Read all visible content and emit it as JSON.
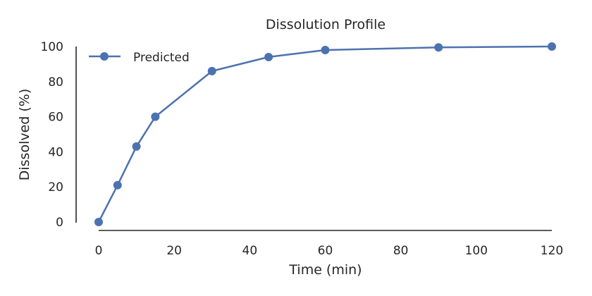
{
  "chart_data": {
    "type": "line",
    "title": "Dissolution Profile",
    "xlabel": "Time (min)",
    "ylabel": "Dissolved (%)",
    "xlim": [
      -6,
      122
    ],
    "ylim": [
      0,
      100
    ],
    "xticks": [
      0,
      20,
      40,
      60,
      80,
      100,
      120
    ],
    "yticks": [
      0,
      20,
      40,
      60,
      80,
      100
    ],
    "grid": false,
    "legend_position": "top-left",
    "series": [
      {
        "name": "Predicted",
        "color": "#4c72b0",
        "marker": "circle",
        "x": [
          0,
          5,
          10,
          15,
          30,
          45,
          60,
          90,
          120
        ],
        "y": [
          0,
          21,
          43,
          60,
          86,
          94,
          98,
          99.5,
          100
        ]
      }
    ]
  }
}
